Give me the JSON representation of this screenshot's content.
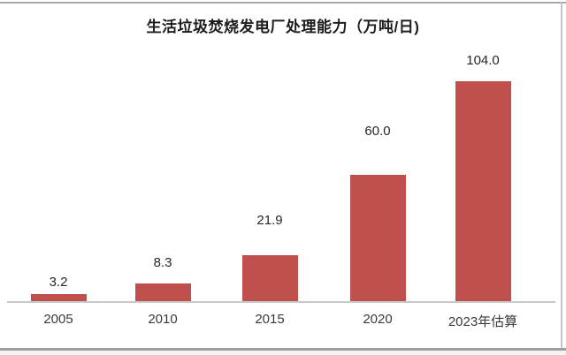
{
  "chart_data": {
    "type": "bar",
    "title": "生活垃圾焚烧发电厂处理能力（万吨/日)",
    "categories": [
      "2005",
      "2010",
      "2015",
      "2020",
      "2023年估算"
    ],
    "values": [
      3.2,
      8.3,
      21.9,
      60.0,
      104.0
    ],
    "data_labels": [
      "3.2",
      "8.3",
      "21.9",
      "60.0",
      "104.0"
    ],
    "xlabel": "",
    "ylabel": "",
    "ylim": [
      0,
      110
    ],
    "grid": false,
    "legend": false,
    "bar_color": "#c0504d",
    "axis_line_color": "#c9c9c9",
    "label_text_color": "#262626",
    "tick_text_color": "#3a3a3a"
  }
}
